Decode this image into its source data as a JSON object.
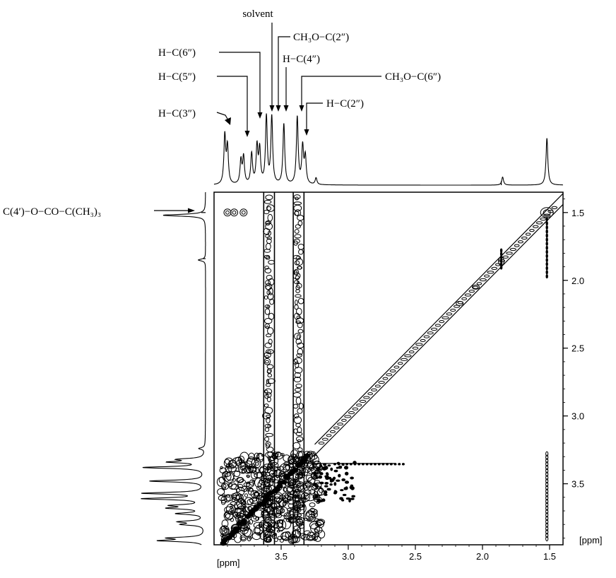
{
  "chart_data": {
    "type": "contour",
    "x_axis": {
      "unit_label": "[ppm]",
      "range": [
        4.0,
        1.4
      ],
      "ticks": [
        "3.5",
        "3.0",
        "2.5",
        "2.0",
        "1.5"
      ],
      "tick_values": [
        3.5,
        3.0,
        2.5,
        2.0,
        1.5
      ]
    },
    "y_axis": {
      "unit_label": "[ppm]",
      "range": [
        1.35,
        3.95
      ],
      "ticks": [
        "1.5",
        "2.0",
        "2.5",
        "3.0",
        "3.5"
      ],
      "tick_values": [
        1.5,
        2.0,
        2.5,
        3.0,
        3.5
      ]
    },
    "annotations": [
      {
        "text": "solvent",
        "ppm": 3.6
      },
      {
        "text": "CH₃O−C(2″)",
        "ppm": 3.57
      },
      {
        "text": "H−C(6″)",
        "ppm": 3.67
      },
      {
        "text": "H−C(5″)",
        "ppm": 3.79
      },
      {
        "text": "H−C(4″)",
        "ppm": 3.47
      },
      {
        "text": "CH₃O−C(6″)",
        "ppm": 3.38
      },
      {
        "text": "H−C(3″)",
        "ppm": 3.93
      },
      {
        "text": "H−C(2″)",
        "ppm": 3.34
      },
      {
        "text": "C(4′)−O−CO−C(CH₃)₃",
        "ppm": 1.52
      }
    ],
    "spectrum_peaks": [
      {
        "ppm": 3.92,
        "height": 0.72
      },
      {
        "ppm": 3.9,
        "height": 0.55
      },
      {
        "ppm": 3.8,
        "height": 0.35
      },
      {
        "ppm": 3.78,
        "height": 0.4
      },
      {
        "ppm": 3.72,
        "height": 0.45
      },
      {
        "ppm": 3.68,
        "height": 0.55
      },
      {
        "ppm": 3.66,
        "height": 0.5
      },
      {
        "ppm": 3.61,
        "height": 1.0
      },
      {
        "ppm": 3.57,
        "height": 1.0
      },
      {
        "ppm": 3.48,
        "height": 0.9
      },
      {
        "ppm": 3.38,
        "height": 1.0
      },
      {
        "ppm": 3.34,
        "height": 0.55
      },
      {
        "ppm": 3.32,
        "height": 0.4
      },
      {
        "ppm": 3.24,
        "height": 0.1
      },
      {
        "ppm": 1.85,
        "height": 0.12
      },
      {
        "ppm": 1.52,
        "height": 0.7
      }
    ],
    "cross_peaks": [
      {
        "x": 3.9,
        "y": 1.5
      },
      {
        "x": 3.85,
        "y": 1.5
      },
      {
        "x": 3.78,
        "y": 1.5
      }
    ]
  }
}
